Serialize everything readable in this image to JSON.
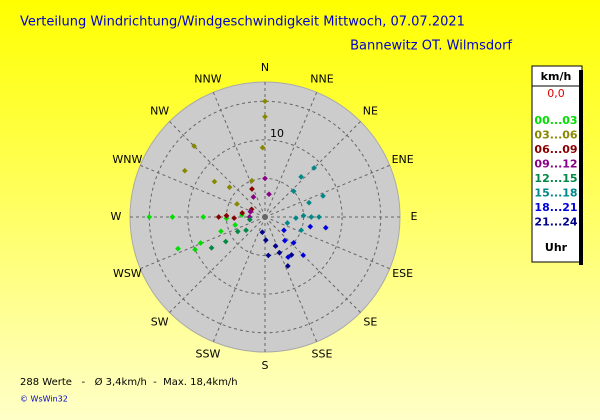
{
  "chart_data": {
    "type": "windrose",
    "title": "Verteilung Windrichtung/Windgeschwindigkeit  Mittwoch, 07.07.2021",
    "subtitle": "Bannewitz OT. Wilmsdorf",
    "directions": [
      "N",
      "NNE",
      "NE",
      "ENE",
      "E",
      "ESE",
      "SE",
      "SSE",
      "S",
      "SSW",
      "SW",
      "WSW",
      "W",
      "WNW",
      "NW",
      "NNW"
    ],
    "rlim": [
      0,
      17.5
    ],
    "rticks": [
      10
    ],
    "rgrid": [
      5,
      10,
      15
    ],
    "legend_title": "km/h",
    "calm_label": "0,0",
    "legend_footer": "Uhr",
    "series": [
      {
        "name": "00...03",
        "color": "#00dd00",
        "directions": [
          270,
          270,
          270,
          268,
          250,
          248,
          252,
          245,
          255,
          275
        ],
        "values": [
          15,
          12,
          8,
          5,
          12,
          9,
          6,
          10,
          4,
          3
        ]
      },
      {
        "name": "03...06",
        "color": "#888800",
        "directions": [
          0,
          0,
          358,
          340,
          300,
          305,
          310,
          315,
          295,
          330
        ],
        "values": [
          15,
          13,
          9,
          5,
          12,
          8,
          6,
          13,
          4,
          3
        ]
      },
      {
        "name": "06...09",
        "color": "#880000",
        "directions": [
          270,
          272,
          268,
          280,
          335,
          300,
          290
        ],
        "values": [
          6,
          5,
          4,
          3,
          4,
          2,
          2
        ]
      },
      {
        "name": "09...12",
        "color": "#880088",
        "directions": [
          0,
          10,
          330,
          290,
          270
        ],
        "values": [
          5,
          3,
          3,
          2,
          2
        ]
      },
      {
        "name": "12...15",
        "color": "#008844",
        "directions": [
          240,
          238,
          242,
          235,
          260
        ],
        "values": [
          8,
          6,
          4,
          3,
          2
        ]
      },
      {
        "name": "15...18",
        "color": "#008888",
        "directions": [
          45,
          42,
          48,
          70,
          72,
          90,
          90,
          88,
          92,
          110,
          105
        ],
        "values": [
          9,
          7,
          5,
          8,
          6,
          7,
          6,
          5,
          4,
          5,
          3
        ]
      },
      {
        "name": "18...21",
        "color": "#0000dd",
        "directions": [
          100,
          102,
          135,
          132,
          140,
          150,
          125
        ],
        "values": [
          8,
          6,
          7,
          5,
          4,
          6,
          3
        ]
      },
      {
        "name": "21...24",
        "color": "#000088",
        "directions": [
          155,
          158,
          175,
          178,
          190,
          160,
          145
        ],
        "values": [
          7,
          5,
          5,
          3,
          2,
          4,
          6
        ]
      }
    ],
    "footer": "288 Werte   -   Ø 3,4km/h  -  Max. 18,4km/h",
    "credit": "© WsWin32"
  }
}
